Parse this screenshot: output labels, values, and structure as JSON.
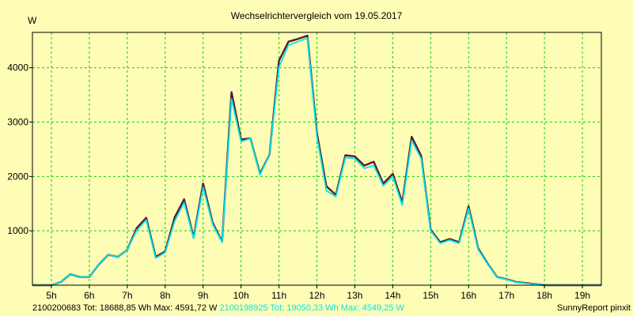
{
  "chart_data": {
    "type": "line",
    "title": "Wechselrichtervergleich vom 19.05.2017",
    "ylabel": "W",
    "xlabel": "",
    "xlim": [
      4.5,
      19.5
    ],
    "ylim": [
      0,
      4650
    ],
    "grid": true,
    "x_ticks": [
      5,
      6,
      7,
      8,
      9,
      10,
      11,
      12,
      13,
      14,
      15,
      16,
      17,
      18,
      19
    ],
    "x_tick_labels": [
      "5h",
      "6h",
      "7h",
      "8h",
      "9h",
      "10h",
      "11h",
      "12h",
      "13h",
      "14h",
      "15h",
      "16h",
      "17h",
      "18h",
      "19h"
    ],
    "y_ticks": [
      1000,
      2000,
      3000,
      4000
    ],
    "y_tick_labels": [
      "1000",
      "2000",
      "3000",
      "4000"
    ],
    "x": [
      4.5,
      5.0,
      5.25,
      5.5,
      5.75,
      6.0,
      6.25,
      6.5,
      6.75,
      7.0,
      7.25,
      7.5,
      7.75,
      8.0,
      8.25,
      8.5,
      8.75,
      9.0,
      9.25,
      9.5,
      9.75,
      10.0,
      10.25,
      10.5,
      10.75,
      11.0,
      11.25,
      11.5,
      11.75,
      12.0,
      12.25,
      12.5,
      12.75,
      13.0,
      13.25,
      13.5,
      13.75,
      14.0,
      14.25,
      14.5,
      14.75,
      15.0,
      15.25,
      15.5,
      15.75,
      16.0,
      16.25,
      16.5,
      16.75,
      17.0,
      17.25,
      17.5,
      17.75,
      18.0,
      18.25,
      18.5,
      18.75,
      19.0,
      19.25,
      19.5
    ],
    "series": [
      {
        "name": "2100200683",
        "color": "#5a1a2a",
        "values": [
          0,
          0,
          60,
          200,
          150,
          150,
          380,
          560,
          520,
          650,
          1050,
          1240,
          520,
          620,
          1250,
          1580,
          880,
          1870,
          1150,
          800,
          3550,
          2680,
          2700,
          2050,
          2400,
          4130,
          4480,
          4530,
          4590,
          2800,
          1820,
          1660,
          2390,
          2370,
          2200,
          2270,
          1870,
          2050,
          1520,
          2730,
          2380,
          1020,
          790,
          850,
          790,
          1450,
          680,
          400,
          150,
          110,
          60,
          40,
          20,
          0,
          0,
          0,
          0,
          0,
          0,
          0
        ]
      },
      {
        "name": "2100198925",
        "color": "#00e5ee",
        "values": [
          0,
          0,
          60,
          200,
          150,
          150,
          380,
          560,
          520,
          650,
          1010,
          1200,
          500,
          600,
          1180,
          1520,
          860,
          1800,
          1120,
          790,
          3430,
          2640,
          2700,
          2030,
          2400,
          4010,
          4420,
          4480,
          4549,
          2730,
          1740,
          1630,
          2350,
          2330,
          2150,
          2200,
          1830,
          2000,
          1470,
          2660,
          2330,
          1000,
          770,
          830,
          770,
          1410,
          660,
          390,
          145,
          105,
          55,
          35,
          18,
          0,
          0,
          0,
          0,
          0,
          0,
          0
        ]
      }
    ],
    "footer": [
      {
        "text": "2100200683 Tot: 18688,85 Wh Max: 4591,72 W",
        "color": "#000000"
      },
      {
        "text": "2100198925 Tot: 19050,33 Wh Max: 4549,25 W",
        "color": "#00e5ee"
      }
    ],
    "brand": "SunnyReport pinxit",
    "colors": {
      "background": "#fdfdb6",
      "grid": "#11cc11",
      "axis": "#000000"
    }
  }
}
